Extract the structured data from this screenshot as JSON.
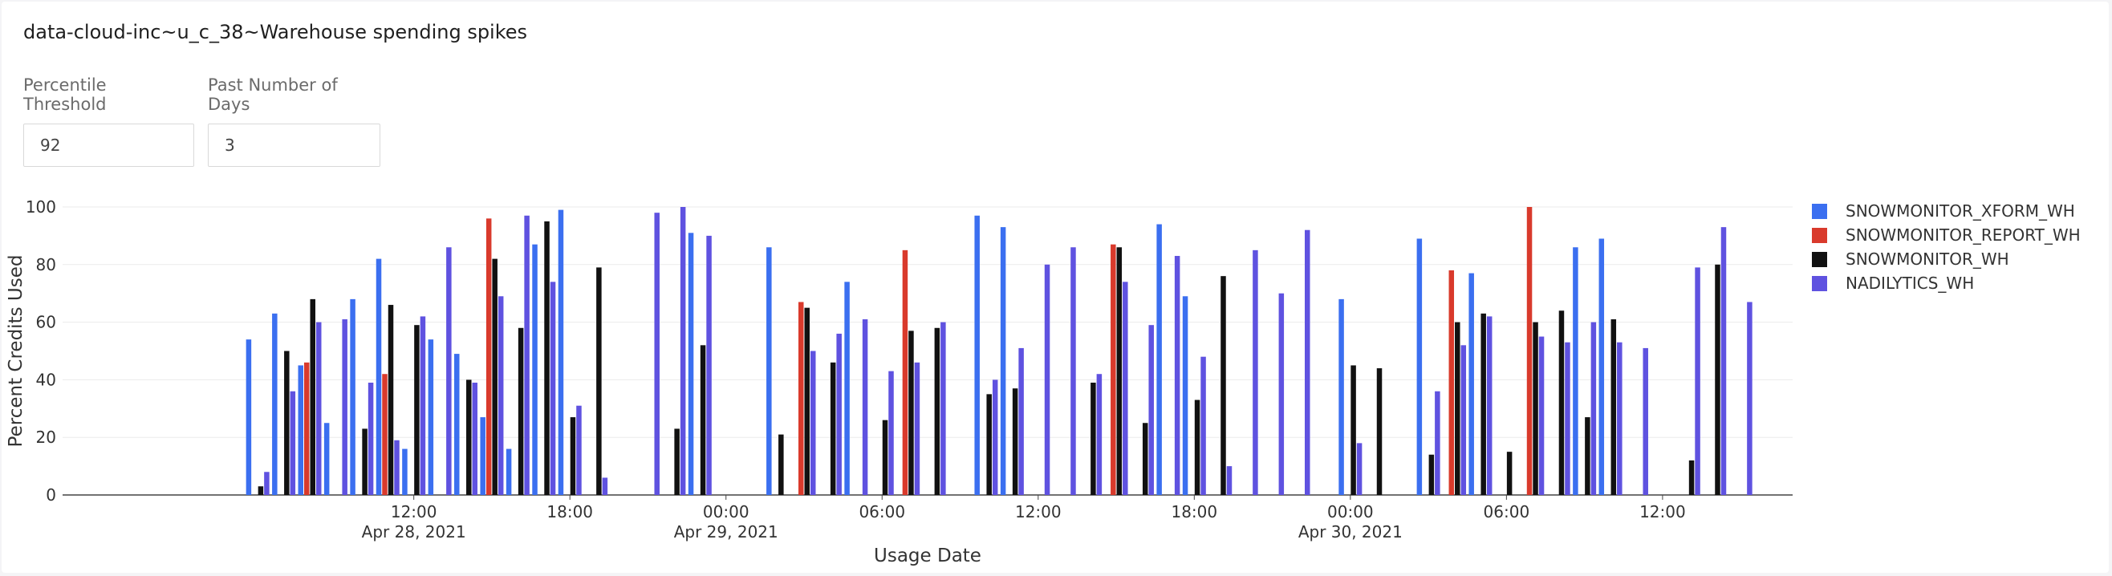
{
  "title": "data-cloud-inc~u_c_38~Warehouse spending spikes",
  "filters": {
    "percentile_label": "Percentile Threshold",
    "percentile_value": "92",
    "days_label": "Past Number of Days",
    "days_value": "3"
  },
  "chart_data": {
    "type": "bar",
    "xlabel": "Usage Date",
    "ylabel": "Percent Credits Used",
    "ylim": [
      0,
      100
    ],
    "yticks": [
      0,
      20,
      40,
      60,
      80,
      100
    ],
    "grid": true,
    "legend_placement": "right",
    "x_range": [
      "2021-04-27T22:30",
      "2021-04-30T17:00"
    ],
    "x_ticks": [
      {
        "t": "2021-04-28T12:00",
        "label": "12:00",
        "sublabel": "Apr 28, 2021"
      },
      {
        "t": "2021-04-28T18:00",
        "label": "18:00",
        "sublabel": ""
      },
      {
        "t": "2021-04-29T00:00",
        "label": "00:00",
        "sublabel": "Apr 29, 2021"
      },
      {
        "t": "2021-04-29T06:00",
        "label": "06:00",
        "sublabel": ""
      },
      {
        "t": "2021-04-29T12:00",
        "label": "12:00",
        "sublabel": ""
      },
      {
        "t": "2021-04-29T18:00",
        "label": "18:00",
        "sublabel": ""
      },
      {
        "t": "2021-04-30T00:00",
        "label": "00:00",
        "sublabel": "Apr 30, 2021"
      },
      {
        "t": "2021-04-30T06:00",
        "label": "06:00",
        "sublabel": ""
      },
      {
        "t": "2021-04-30T12:00",
        "label": "12:00",
        "sublabel": ""
      }
    ],
    "series": [
      {
        "name": "SNOWMONITOR_XFORM_WH",
        "color": "#3b6ff0",
        "points": [
          [
            "2021-04-28T06:00",
            54
          ],
          [
            "2021-04-28T07:00",
            63
          ],
          [
            "2021-04-28T08:00",
            45
          ],
          [
            "2021-04-28T09:00",
            25
          ],
          [
            "2021-04-28T10:00",
            68
          ],
          [
            "2021-04-28T11:00",
            82
          ],
          [
            "2021-04-28T12:00",
            16
          ],
          [
            "2021-04-28T13:00",
            54
          ],
          [
            "2021-04-28T14:00",
            49
          ],
          [
            "2021-04-28T15:00",
            27
          ],
          [
            "2021-04-28T16:00",
            16
          ],
          [
            "2021-04-28T17:00",
            87
          ],
          [
            "2021-04-28T18:00",
            99
          ],
          [
            "2021-04-28T23:00",
            91
          ],
          [
            "2021-04-29T02:00",
            86
          ],
          [
            "2021-04-29T05:00",
            74
          ],
          [
            "2021-04-29T10:00",
            97
          ],
          [
            "2021-04-29T11:00",
            93
          ],
          [
            "2021-04-29T17:00",
            94
          ],
          [
            "2021-04-29T18:00",
            69
          ],
          [
            "2021-04-30T00:00",
            68
          ],
          [
            "2021-04-30T03:00",
            89
          ],
          [
            "2021-04-30T05:00",
            77
          ],
          [
            "2021-04-30T09:00",
            86
          ],
          [
            "2021-04-30T10:00",
            89
          ]
        ]
      },
      {
        "name": "SNOWMONITOR_REPORT_WH",
        "color": "#d93a2c",
        "points": [
          [
            "2021-04-28T08:00",
            46
          ],
          [
            "2021-04-28T11:00",
            42
          ],
          [
            "2021-04-28T15:00",
            96
          ],
          [
            "2021-04-29T03:00",
            67
          ],
          [
            "2021-04-29T07:00",
            85
          ],
          [
            "2021-04-29T15:00",
            87
          ],
          [
            "2021-04-30T04:00",
            78
          ],
          [
            "2021-04-30T07:00",
            100
          ]
        ]
      },
      {
        "name": "SNOWMONITOR_WH",
        "color": "#111111",
        "points": [
          [
            "2021-04-28T06:00",
            3
          ],
          [
            "2021-04-28T07:00",
            50
          ],
          [
            "2021-04-28T08:00",
            68
          ],
          [
            "2021-04-28T10:00",
            23
          ],
          [
            "2021-04-28T11:00",
            66
          ],
          [
            "2021-04-28T12:00",
            59
          ],
          [
            "2021-04-28T14:00",
            40
          ],
          [
            "2021-04-28T15:00",
            82
          ],
          [
            "2021-04-28T16:00",
            58
          ],
          [
            "2021-04-28T17:00",
            95
          ],
          [
            "2021-04-28T18:00",
            27
          ],
          [
            "2021-04-28T19:00",
            79
          ],
          [
            "2021-04-28T22:00",
            23
          ],
          [
            "2021-04-28T23:00",
            52
          ],
          [
            "2021-04-29T02:00",
            21
          ],
          [
            "2021-04-29T03:00",
            65
          ],
          [
            "2021-04-29T04:00",
            46
          ],
          [
            "2021-04-29T06:00",
            26
          ],
          [
            "2021-04-29T07:00",
            57
          ],
          [
            "2021-04-29T08:00",
            58
          ],
          [
            "2021-04-29T10:00",
            35
          ],
          [
            "2021-04-29T11:00",
            37
          ],
          [
            "2021-04-29T14:00",
            39
          ],
          [
            "2021-04-29T15:00",
            86
          ],
          [
            "2021-04-29T16:00",
            25
          ],
          [
            "2021-04-29T18:00",
            33
          ],
          [
            "2021-04-29T19:00",
            76
          ],
          [
            "2021-04-30T00:00",
            45
          ],
          [
            "2021-04-30T01:00",
            44
          ],
          [
            "2021-04-30T03:00",
            14
          ],
          [
            "2021-04-30T04:00",
            60
          ],
          [
            "2021-04-30T05:00",
            63
          ],
          [
            "2021-04-30T06:00",
            15
          ],
          [
            "2021-04-30T07:00",
            60
          ],
          [
            "2021-04-30T08:00",
            64
          ],
          [
            "2021-04-30T09:00",
            27
          ],
          [
            "2021-04-30T10:00",
            61
          ],
          [
            "2021-04-30T13:00",
            12
          ],
          [
            "2021-04-30T14:00",
            80
          ]
        ]
      },
      {
        "name": "NADILYTICS_WH",
        "color": "#5f52e0",
        "points": [
          [
            "2021-04-28T06:00",
            8
          ],
          [
            "2021-04-28T07:00",
            36
          ],
          [
            "2021-04-28T08:00",
            60
          ],
          [
            "2021-04-28T09:00",
            61
          ],
          [
            "2021-04-28T10:00",
            39
          ],
          [
            "2021-04-28T11:00",
            19
          ],
          [
            "2021-04-28T12:00",
            62
          ],
          [
            "2021-04-28T13:00",
            86
          ],
          [
            "2021-04-28T14:00",
            39
          ],
          [
            "2021-04-28T15:00",
            69
          ],
          [
            "2021-04-28T16:00",
            97
          ],
          [
            "2021-04-28T17:00",
            74
          ],
          [
            "2021-04-28T18:00",
            31
          ],
          [
            "2021-04-28T19:00",
            6
          ],
          [
            "2021-04-28T21:00",
            98
          ],
          [
            "2021-04-28T22:00",
            100
          ],
          [
            "2021-04-28T23:00",
            90
          ],
          [
            "2021-04-29T03:00",
            50
          ],
          [
            "2021-04-29T04:00",
            56
          ],
          [
            "2021-04-29T05:00",
            61
          ],
          [
            "2021-04-29T06:00",
            43
          ],
          [
            "2021-04-29T07:00",
            46
          ],
          [
            "2021-04-29T08:00",
            60
          ],
          [
            "2021-04-29T10:00",
            40
          ],
          [
            "2021-04-29T11:00",
            51
          ],
          [
            "2021-04-29T12:00",
            80
          ],
          [
            "2021-04-29T13:00",
            86
          ],
          [
            "2021-04-29T14:00",
            42
          ],
          [
            "2021-04-29T15:00",
            74
          ],
          [
            "2021-04-29T16:00",
            59
          ],
          [
            "2021-04-29T17:00",
            83
          ],
          [
            "2021-04-29T18:00",
            48
          ],
          [
            "2021-04-29T19:00",
            10
          ],
          [
            "2021-04-29T20:00",
            85
          ],
          [
            "2021-04-29T21:00",
            70
          ],
          [
            "2021-04-29T22:00",
            92
          ],
          [
            "2021-04-30T00:00",
            18
          ],
          [
            "2021-04-30T03:00",
            36
          ],
          [
            "2021-04-30T04:00",
            52
          ],
          [
            "2021-04-30T05:00",
            62
          ],
          [
            "2021-04-30T07:00",
            55
          ],
          [
            "2021-04-30T08:00",
            53
          ],
          [
            "2021-04-30T09:00",
            60
          ],
          [
            "2021-04-30T10:00",
            53
          ],
          [
            "2021-04-30T11:00",
            51
          ],
          [
            "2021-04-30T13:00",
            79
          ],
          [
            "2021-04-30T14:00",
            93
          ],
          [
            "2021-04-30T15:00",
            67
          ]
        ]
      }
    ]
  }
}
